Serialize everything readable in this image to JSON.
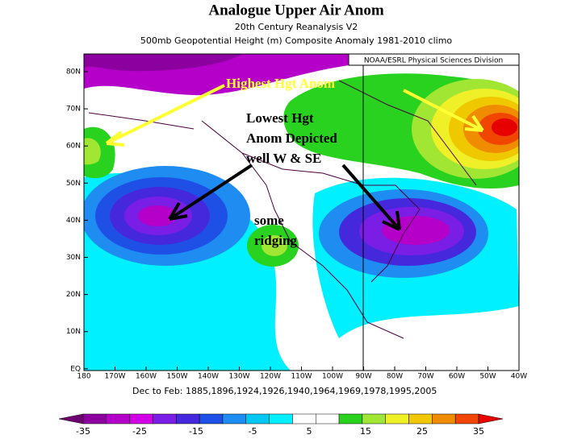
{
  "header": {
    "title": "Analogue Upper Air Anom",
    "subtitle": "20th Century Reanalysis V2",
    "description": "500mb Geopotential Height (m) Composite Anomaly 1981-2010 climo",
    "credit": "NOAA/ESRL Physical Sciences Division"
  },
  "map": {
    "lat_labels": [
      "80N",
      "70N",
      "60N",
      "50N",
      "40N",
      "30N",
      "20N",
      "10N",
      "EQ"
    ],
    "lon_labels": [
      "180",
      "170W",
      "160W",
      "150W",
      "140W",
      "130W",
      "120W",
      "110W",
      "100W",
      "90W",
      "80W",
      "70W",
      "60W",
      "50W",
      "40W"
    ],
    "annotations": [
      {
        "lines": [
          "Highest  Hgt Anom"
        ],
        "color": "#ffff33"
      },
      {
        "lines": [
          "Lowest Hgt",
          "Anom Depicted",
          "well W & SE"
        ],
        "color": "#000000"
      },
      {
        "lines": [
          "some",
          "ridging"
        ],
        "color": "#000000"
      }
    ],
    "footer": "Dec to Feb: 1885,1896,1924,1926,1940,1964,1969,1978,1995,2005"
  },
  "colorbar": {
    "ticks": [
      -35,
      -25,
      -15,
      -5,
      5,
      15,
      25,
      35
    ],
    "colors": [
      "#6e0070",
      "#8c00a0",
      "#b400c8",
      "#d200e6",
      "#7a1ee6",
      "#4628dc",
      "#1e50e6",
      "#1e8cf0",
      "#00c8f0",
      "#00f0ff",
      "#ffffff",
      "#ffffff",
      "#28d21e",
      "#a0e632",
      "#f0f028",
      "#f0c800",
      "#f08c00",
      "#f04600",
      "#e60000"
    ]
  }
}
